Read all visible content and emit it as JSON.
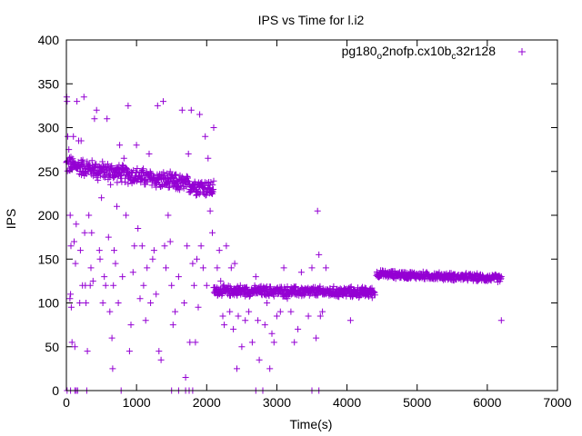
{
  "chart_data": {
    "type": "scatter",
    "title": "IPS vs Time for l.i2",
    "xlabel": "Time(s)",
    "ylabel": "IPS",
    "xlim": [
      0,
      7000
    ],
    "ylim": [
      0,
      400
    ],
    "x_ticks": [
      0,
      1000,
      2000,
      3000,
      4000,
      5000,
      6000,
      7000
    ],
    "y_ticks": [
      0,
      50,
      100,
      150,
      200,
      250,
      300,
      350,
      400
    ],
    "grid": false,
    "legend_position": "top-right",
    "marker": "+",
    "series": [
      {
        "name": "pg180_o2nofp.cx10b_c32r128",
        "legend": {
          "main1": "pg180",
          "sub1": "o",
          "main2": "2nofp.cx10b",
          "sub2": "c",
          "main3": "32r128"
        },
        "color": "#9400d3",
        "segments": [
          {
            "x_start": 0,
            "x_end": 2100,
            "step": 5,
            "base_start": 258,
            "base_end": 230,
            "jitter": 12
          },
          {
            "x_start": 2100,
            "x_end": 4400,
            "step": 5,
            "base_start": 114,
            "base_end": 112,
            "jitter": 7
          },
          {
            "x_start": 4420,
            "x_end": 6200,
            "step": 5,
            "base_start": 133,
            "base_end": 128,
            "jitter": 5
          }
        ],
        "outliers": [
          [
            5,
            335
          ],
          [
            10,
            330
          ],
          [
            20,
            290
          ],
          [
            35,
            275
          ],
          [
            50,
            105
          ],
          [
            60,
            110
          ],
          [
            70,
            95
          ],
          [
            55,
            200
          ],
          [
            65,
            165
          ],
          [
            80,
            55
          ],
          [
            100,
            290
          ],
          [
            110,
            170
          ],
          [
            120,
            50
          ],
          [
            130,
            145
          ],
          [
            140,
            190
          ],
          [
            150,
            330
          ],
          [
            160,
            0
          ],
          [
            175,
            285
          ],
          [
            190,
            100
          ],
          [
            200,
            160
          ],
          [
            210,
            285
          ],
          [
            230,
            120
          ],
          [
            250,
            335
          ],
          [
            260,
            180
          ],
          [
            270,
            120
          ],
          [
            280,
            100
          ],
          [
            300,
            45
          ],
          [
            320,
            200
          ],
          [
            340,
            120
          ],
          [
            350,
            140
          ],
          [
            360,
            180
          ],
          [
            380,
            125
          ],
          [
            400,
            310
          ],
          [
            430,
            320
          ],
          [
            450,
            240
          ],
          [
            470,
            160
          ],
          [
            480,
            150
          ],
          [
            500,
            220
          ],
          [
            520,
            100
          ],
          [
            540,
            130
          ],
          [
            560,
            120
          ],
          [
            580,
            310
          ],
          [
            600,
            175
          ],
          [
            620,
            90
          ],
          [
            630,
            235
          ],
          [
            650,
            60
          ],
          [
            660,
            25
          ],
          [
            670,
            120
          ],
          [
            680,
            160
          ],
          [
            700,
            145
          ],
          [
            720,
            210
          ],
          [
            740,
            100
          ],
          [
            760,
            280
          ],
          [
            780,
            0
          ],
          [
            800,
            130
          ],
          [
            820,
            265
          ],
          [
            850,
            200
          ],
          [
            880,
            325
          ],
          [
            900,
            45
          ],
          [
            920,
            75
          ],
          [
            950,
            135
          ],
          [
            970,
            165
          ],
          [
            1000,
            280
          ],
          [
            1020,
            185
          ],
          [
            1050,
            105
          ],
          [
            1080,
            165
          ],
          [
            1100,
            120
          ],
          [
            1130,
            80
          ],
          [
            1150,
            140
          ],
          [
            1180,
            270
          ],
          [
            1200,
            100
          ],
          [
            1230,
            150
          ],
          [
            1250,
            160
          ],
          [
            1280,
            110
          ],
          [
            1300,
            325
          ],
          [
            1320,
            45
          ],
          [
            1350,
            35
          ],
          [
            1380,
            330
          ],
          [
            1400,
            165
          ],
          [
            1420,
            140
          ],
          [
            1450,
            200
          ],
          [
            1480,
            170
          ],
          [
            1500,
            120
          ],
          [
            1520,
            75
          ],
          [
            1550,
            90
          ],
          [
            1600,
            130
          ],
          [
            1650,
            320
          ],
          [
            1680,
            100
          ],
          [
            1700,
            15
          ],
          [
            1720,
            165
          ],
          [
            1740,
            270
          ],
          [
            1760,
            55
          ],
          [
            1780,
            320
          ],
          [
            1800,
            145
          ],
          [
            1820,
            120
          ],
          [
            1840,
            55
          ],
          [
            1860,
            150
          ],
          [
            1880,
            95
          ],
          [
            1900,
            315
          ],
          [
            1920,
            165
          ],
          [
            1950,
            140
          ],
          [
            1980,
            290
          ],
          [
            2000,
            120
          ],
          [
            2020,
            265
          ],
          [
            2050,
            205
          ],
          [
            2080,
            180
          ],
          [
            2100,
            300
          ],
          [
            2150,
            140
          ],
          [
            2180,
            160
          ],
          [
            2200,
            125
          ],
          [
            2230,
            85
          ],
          [
            2250,
            75
          ],
          [
            2280,
            165
          ],
          [
            2300,
            110
          ],
          [
            2330,
            90
          ],
          [
            2350,
            140
          ],
          [
            2380,
            70
          ],
          [
            2400,
            145
          ],
          [
            2430,
            25
          ],
          [
            2450,
            85
          ],
          [
            2480,
            120
          ],
          [
            2500,
            50
          ],
          [
            2550,
            80
          ],
          [
            2600,
            90
          ],
          [
            2650,
            55
          ],
          [
            2700,
            130
          ],
          [
            2730,
            80
          ],
          [
            2750,
            35
          ],
          [
            2780,
            110
          ],
          [
            2800,
            0
          ],
          [
            2830,
            75
          ],
          [
            2860,
            100
          ],
          [
            2900,
            25
          ],
          [
            2930,
            65
          ],
          [
            2960,
            55
          ],
          [
            3000,
            85
          ],
          [
            3050,
            90
          ],
          [
            3100,
            140
          ],
          [
            3150,
            105
          ],
          [
            3200,
            90
          ],
          [
            3250,
            55
          ],
          [
            3300,
            70
          ],
          [
            3350,
            135
          ],
          [
            3400,
            110
          ],
          [
            3450,
            85
          ],
          [
            3500,
            140
          ],
          [
            3530,
            115
          ],
          [
            3560,
            60
          ],
          [
            3580,
            205
          ],
          [
            3600,
            155
          ],
          [
            3620,
            85
          ],
          [
            3650,
            90
          ],
          [
            3700,
            140
          ],
          [
            3800,
            110
          ],
          [
            4050,
            80
          ],
          [
            6200,
            80
          ],
          [
            10,
            0
          ],
          [
            60,
            0
          ],
          [
            120,
            0
          ],
          [
            140,
            0
          ],
          [
            290,
            0
          ],
          [
            1500,
            0
          ],
          [
            1600,
            0
          ],
          [
            1700,
            0
          ],
          [
            1750,
            0
          ],
          [
            1800,
            0
          ],
          [
            2700,
            0
          ],
          [
            3500,
            0
          ],
          [
            3600,
            0
          ]
        ]
      }
    ]
  }
}
